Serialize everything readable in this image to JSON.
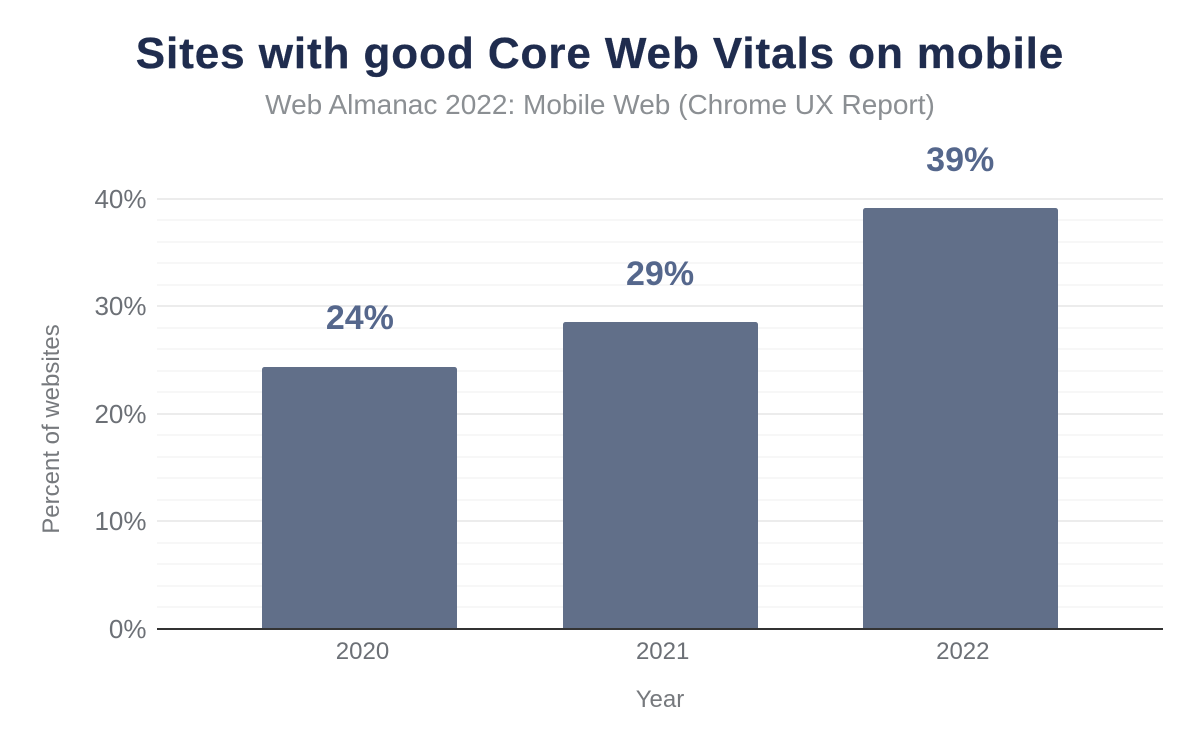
{
  "chart_data": {
    "type": "bar",
    "title": "Sites with good Core Web Vitals on mobile",
    "subtitle": "Web Almanac 2022: Mobile Web (Chrome UX Report)",
    "xlabel": "Year",
    "ylabel": "Percent of websites",
    "categories": [
      "2020",
      "2021",
      "2022"
    ],
    "values": [
      24.4,
      28.5,
      39.1
    ],
    "data_labels": [
      "24%",
      "29%",
      "39%"
    ],
    "ylim": [
      0,
      40
    ],
    "ytick_step": 10,
    "yminor_step": 2,
    "ytick_suffix": "%",
    "grid": "horizontal-major-and-minor",
    "legend": "none"
  },
  "colors": {
    "background": "#ffffff",
    "title": "#1f2c4e",
    "subtitle": "#8b8f93",
    "bar": "#616f89",
    "data_label": "#55678c",
    "tick_label": "#6c7076",
    "axis_title": "#76797d",
    "axis_line": "#333333",
    "grid_major": "#ececec",
    "grid_minor": "#f7f7f7"
  }
}
